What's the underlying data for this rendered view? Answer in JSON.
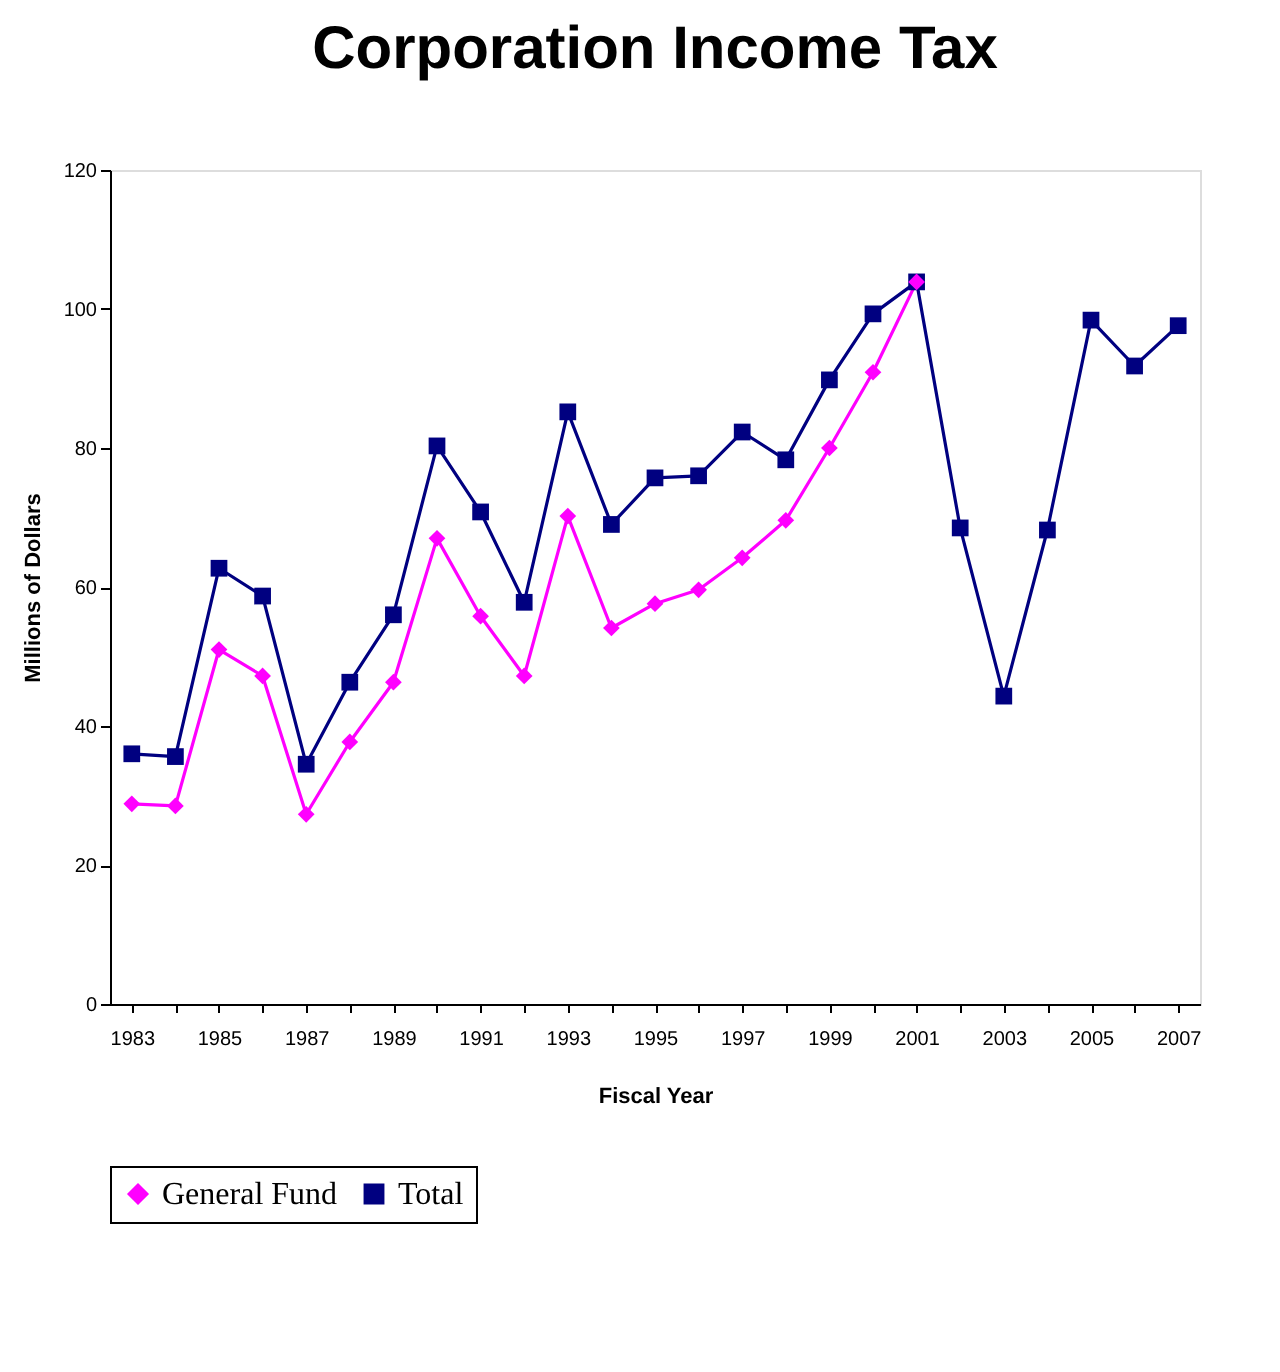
{
  "chart_data": {
    "type": "line",
    "title": "Corporation Income Tax",
    "xlabel": "Fiscal Year",
    "ylabel": "Millions of Dollars",
    "categories": [
      "1983",
      null,
      "1985",
      null,
      "1987",
      null,
      "1989",
      null,
      "1991",
      null,
      "1993",
      null,
      "1995",
      null,
      "1997",
      null,
      "1999",
      null,
      "2001",
      null,
      "2003",
      null,
      "2005",
      null,
      "2007"
    ],
    "series": [
      {
        "name": "General Fund",
        "color": "#ff00ff",
        "marker": "diamond",
        "values": [
          28.8,
          28.5,
          51,
          47.2,
          27.3,
          37.7,
          46.3,
          67,
          55.8,
          47.2,
          70.2,
          54.1,
          57.6,
          59.6,
          64.2,
          69.6,
          80,
          90.9,
          103.9,
          null,
          null,
          null,
          null,
          null,
          null
        ]
      },
      {
        "name": "Total",
        "color": "#000080",
        "marker": "square",
        "values": [
          36,
          35.6,
          62.7,
          58.7,
          34.5,
          46.3,
          56,
          80.3,
          70.8,
          57.8,
          85.2,
          69,
          75.7,
          76,
          82.3,
          78.3,
          89.8,
          99.3,
          103.9,
          68.5,
          44.3,
          68.2,
          98.4,
          91.8,
          97.6
        ]
      }
    ],
    "ylim": [
      0,
      120
    ],
    "yticks": [
      0,
      20,
      40,
      60,
      80,
      100,
      120
    ],
    "grid": false,
    "legend": "bottom",
    "line_style": "solid"
  }
}
